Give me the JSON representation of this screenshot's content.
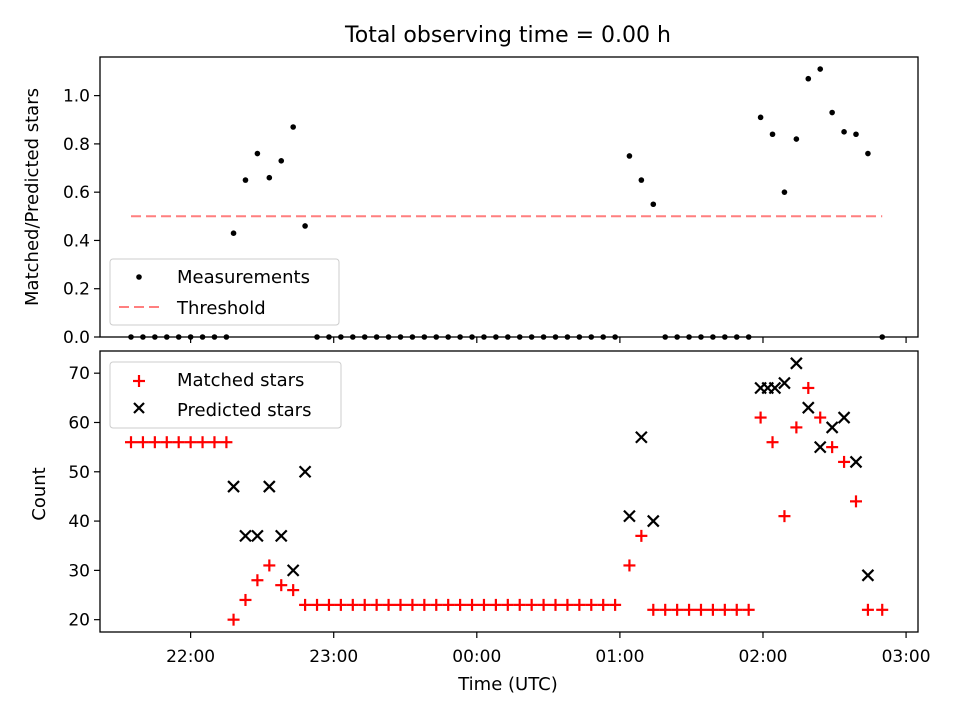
{
  "chart_data": [
    {
      "type": "scatter",
      "title": "Total observing time = 0.00 h",
      "ylabel": "Matched/Predicted stars",
      "xlabel": "",
      "ylim": [
        0,
        1.16
      ],
      "yticks": [
        "0.0",
        "0.2",
        "0.4",
        "0.6",
        "0.8",
        "1.0"
      ],
      "xticks": [
        "22:00",
        "23:00",
        "00:00",
        "01:00",
        "02:00",
        "03:00"
      ],
      "legend_position": "bottom-left",
      "series": [
        {
          "name": "Measurements",
          "marker": "dot",
          "color": "#000000",
          "points": [
            [
              "21:35",
              0.0
            ],
            [
              "21:40",
              0.0
            ],
            [
              "21:45",
              0.0
            ],
            [
              "21:50",
              0.0
            ],
            [
              "21:55",
              0.0
            ],
            [
              "22:00",
              0.0
            ],
            [
              "22:05",
              0.0
            ],
            [
              "22:10",
              0.0
            ],
            [
              "22:15",
              0.0
            ],
            [
              "22:18",
              0.43
            ],
            [
              "22:23",
              0.65
            ],
            [
              "22:28",
              0.76
            ],
            [
              "22:33",
              0.66
            ],
            [
              "22:38",
              0.73
            ],
            [
              "22:43",
              0.87
            ],
            [
              "22:48",
              0.46
            ],
            [
              "22:53",
              0.0
            ],
            [
              "22:58",
              0.0
            ],
            [
              "23:03",
              0.0
            ],
            [
              "23:08",
              0.0
            ],
            [
              "23:13",
              0.0
            ],
            [
              "23:18",
              0.0
            ],
            [
              "23:23",
              0.0
            ],
            [
              "23:28",
              0.0
            ],
            [
              "23:33",
              0.0
            ],
            [
              "23:38",
              0.0
            ],
            [
              "23:43",
              0.0
            ],
            [
              "23:48",
              0.0
            ],
            [
              "23:53",
              0.0
            ],
            [
              "23:58",
              0.0
            ],
            [
              "00:03",
              0.0
            ],
            [
              "00:08",
              0.0
            ],
            [
              "00:13",
              0.0
            ],
            [
              "00:18",
              0.0
            ],
            [
              "00:23",
              0.0
            ],
            [
              "00:28",
              0.0
            ],
            [
              "00:33",
              0.0
            ],
            [
              "00:38",
              0.0
            ],
            [
              "00:43",
              0.0
            ],
            [
              "00:48",
              0.0
            ],
            [
              "00:53",
              0.0
            ],
            [
              "00:58",
              0.0
            ],
            [
              "01:04",
              0.75
            ],
            [
              "01:09",
              0.65
            ],
            [
              "01:14",
              0.55
            ],
            [
              "01:19",
              0.0
            ],
            [
              "01:24",
              0.0
            ],
            [
              "01:29",
              0.0
            ],
            [
              "01:34",
              0.0
            ],
            [
              "01:39",
              0.0
            ],
            [
              "01:44",
              0.0
            ],
            [
              "01:49",
              0.0
            ],
            [
              "01:54",
              0.0
            ],
            [
              "01:59",
              0.91
            ],
            [
              "02:04",
              0.84
            ],
            [
              "02:09",
              0.6
            ],
            [
              "02:14",
              0.82
            ],
            [
              "02:19",
              1.07
            ],
            [
              "02:24",
              1.11
            ],
            [
              "02:29",
              0.93
            ],
            [
              "02:34",
              0.85
            ],
            [
              "02:39",
              0.84
            ],
            [
              "02:44",
              0.76
            ],
            [
              "02:50",
              0.0
            ]
          ]
        },
        {
          "name": "Threshold",
          "marker": "dashed-line",
          "color": "#ff7f7f",
          "points": [
            [
              "21:35",
              0.5
            ],
            [
              "02:50",
              0.5
            ]
          ]
        }
      ]
    },
    {
      "type": "scatter",
      "title": "",
      "ylabel": "Count",
      "xlabel": "Time (UTC)",
      "ylim": [
        17.5,
        74.5
      ],
      "yticks": [
        "20",
        "30",
        "40",
        "50",
        "60",
        "70"
      ],
      "xticks": [
        "22:00",
        "23:00",
        "00:00",
        "01:00",
        "02:00",
        "03:00"
      ],
      "legend_position": "top-left",
      "series": [
        {
          "name": "Matched stars",
          "marker": "plus",
          "color": "#ff0000",
          "points": [
            [
              "21:35",
              56
            ],
            [
              "21:40",
              56
            ],
            [
              "21:45",
              56
            ],
            [
              "21:50",
              56
            ],
            [
              "21:55",
              56
            ],
            [
              "22:00",
              56
            ],
            [
              "22:05",
              56
            ],
            [
              "22:10",
              56
            ],
            [
              "22:15",
              56
            ],
            [
              "22:18",
              20
            ],
            [
              "22:23",
              24
            ],
            [
              "22:28",
              28
            ],
            [
              "22:33",
              31
            ],
            [
              "22:38",
              27
            ],
            [
              "22:43",
              26
            ],
            [
              "22:48",
              23
            ],
            [
              "22:53",
              23
            ],
            [
              "22:58",
              23
            ],
            [
              "23:03",
              23
            ],
            [
              "23:08",
              23
            ],
            [
              "23:13",
              23
            ],
            [
              "23:18",
              23
            ],
            [
              "23:23",
              23
            ],
            [
              "23:28",
              23
            ],
            [
              "23:33",
              23
            ],
            [
              "23:38",
              23
            ],
            [
              "23:43",
              23
            ],
            [
              "23:48",
              23
            ],
            [
              "23:53",
              23
            ],
            [
              "23:58",
              23
            ],
            [
              "00:03",
              23
            ],
            [
              "00:08",
              23
            ],
            [
              "00:13",
              23
            ],
            [
              "00:18",
              23
            ],
            [
              "00:23",
              23
            ],
            [
              "00:28",
              23
            ],
            [
              "00:33",
              23
            ],
            [
              "00:38",
              23
            ],
            [
              "00:43",
              23
            ],
            [
              "00:48",
              23
            ],
            [
              "00:53",
              23
            ],
            [
              "00:58",
              23
            ],
            [
              "01:04",
              31
            ],
            [
              "01:09",
              37
            ],
            [
              "01:14",
              22
            ],
            [
              "01:19",
              22
            ],
            [
              "01:24",
              22
            ],
            [
              "01:29",
              22
            ],
            [
              "01:34",
              22
            ],
            [
              "01:39",
              22
            ],
            [
              "01:44",
              22
            ],
            [
              "01:49",
              22
            ],
            [
              "01:54",
              22
            ],
            [
              "01:59",
              61
            ],
            [
              "02:04",
              56
            ],
            [
              "02:09",
              41
            ],
            [
              "02:14",
              59
            ],
            [
              "02:19",
              67
            ],
            [
              "02:24",
              61
            ],
            [
              "02:29",
              55
            ],
            [
              "02:34",
              52
            ],
            [
              "02:39",
              44
            ],
            [
              "02:44",
              22
            ],
            [
              "02:50",
              22
            ]
          ]
        },
        {
          "name": "Predicted stars",
          "marker": "x",
          "color": "#000000",
          "points": [
            [
              "22:18",
              47
            ],
            [
              "22:23",
              37
            ],
            [
              "22:28",
              37
            ],
            [
              "22:33",
              47
            ],
            [
              "22:38",
              37
            ],
            [
              "22:43",
              30
            ],
            [
              "22:48",
              50
            ],
            [
              "01:04",
              41
            ],
            [
              "01:09",
              57
            ],
            [
              "01:14",
              40
            ],
            [
              "01:59",
              67
            ],
            [
              "02:02",
              67
            ],
            [
              "02:05",
              67
            ],
            [
              "02:09",
              68
            ],
            [
              "02:14",
              72
            ],
            [
              "02:19",
              63
            ],
            [
              "02:24",
              55
            ],
            [
              "02:29",
              59
            ],
            [
              "02:34",
              61
            ],
            [
              "02:39",
              52
            ],
            [
              "02:44",
              29
            ]
          ]
        }
      ]
    }
  ]
}
